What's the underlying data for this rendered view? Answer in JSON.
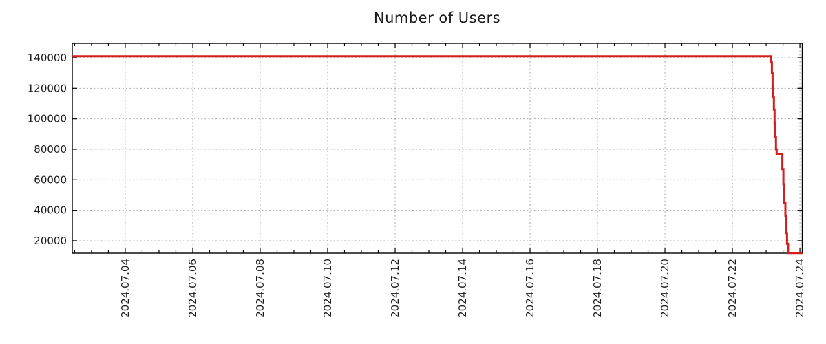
{
  "chart_data": {
    "type": "line",
    "title": "Number of Users",
    "xlabel": "",
    "ylabel": "",
    "x_unit": "date (fractional day of July 2024)",
    "xlim": [
      2.43,
      24.07
    ],
    "ylim": [
      11850,
      149470
    ],
    "x_major_ticks": [
      {
        "value": 4,
        "label": "2024.07.04"
      },
      {
        "value": 6,
        "label": "2024.07.06"
      },
      {
        "value": 8,
        "label": "2024.07.08"
      },
      {
        "value": 10,
        "label": "2024.07.10"
      },
      {
        "value": 12,
        "label": "2024.07.12"
      },
      {
        "value": 14,
        "label": "2024.07.14"
      },
      {
        "value": 16,
        "label": "2024.07.16"
      },
      {
        "value": 18,
        "label": "2024.07.18"
      },
      {
        "value": 20,
        "label": "2024.07.20"
      },
      {
        "value": 22,
        "label": "2024.07.22"
      },
      {
        "value": 24,
        "label": "2024.07.24"
      }
    ],
    "x_minor_tick_step": 0.5,
    "y_ticks": [
      {
        "value": 20000,
        "label": "20000"
      },
      {
        "value": 40000,
        "label": "40000"
      },
      {
        "value": 60000,
        "label": "60000"
      },
      {
        "value": 80000,
        "label": "80000"
      },
      {
        "value": 100000,
        "label": "100000"
      },
      {
        "value": 120000,
        "label": "120000"
      },
      {
        "value": 140000,
        "label": "140000"
      }
    ],
    "grid": {
      "show": true,
      "color": "#a6a6a6",
      "style": "dashed"
    },
    "legend": "none",
    "axis_color": "#000000",
    "text_color": "#1c1c1c",
    "plot_background": "#ffffff",
    "series": [
      {
        "name": "Number of Users",
        "color": "#d41f1f",
        "line_width": 3,
        "interpolation": "step-after",
        "points": [
          [
            2.43,
            141000
          ],
          [
            23.13,
            141000
          ],
          [
            23.15,
            137000
          ],
          [
            23.17,
            130000
          ],
          [
            23.19,
            121000
          ],
          [
            23.21,
            114000
          ],
          [
            23.23,
            106000
          ],
          [
            23.25,
            97000
          ],
          [
            23.27,
            88000
          ],
          [
            23.29,
            80000
          ],
          [
            23.31,
            77000
          ],
          [
            23.45,
            77000
          ],
          [
            23.48,
            67000
          ],
          [
            23.51,
            57000
          ],
          [
            23.54,
            45000
          ],
          [
            23.57,
            36000
          ],
          [
            23.6,
            25000
          ],
          [
            23.62,
            18000
          ],
          [
            23.65,
            12000
          ],
          [
            24.07,
            12000
          ]
        ]
      }
    ]
  }
}
